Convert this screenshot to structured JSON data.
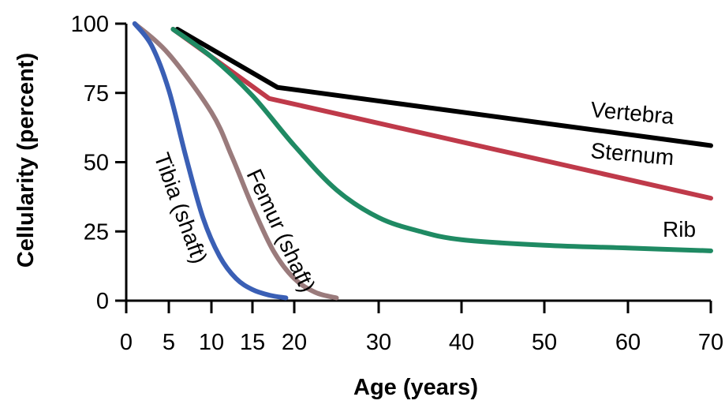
{
  "chart_data": {
    "type": "line",
    "title": "",
    "xlabel": "Age (years)",
    "ylabel": "Cellularity (percent)",
    "xlim": [
      0,
      70
    ],
    "ylim": [
      0,
      100
    ],
    "x_ticks": [
      0,
      5,
      10,
      15,
      20,
      30,
      40,
      50,
      60,
      70
    ],
    "y_ticks": [
      0,
      25,
      50,
      75,
      100
    ],
    "grid": false,
    "legend": "inline labels",
    "series": [
      {
        "name": "Vertebra",
        "color": "#000000",
        "x": [
          6,
          18,
          70
        ],
        "y": [
          98,
          77,
          56
        ]
      },
      {
        "name": "Sternum",
        "color": "#bf3a4a",
        "x": [
          5.5,
          17,
          70
        ],
        "y": [
          98,
          73,
          37
        ]
      },
      {
        "name": "Rib",
        "color": "#1f8a63",
        "x": [
          5.5,
          10,
          15,
          20,
          25,
          30,
          35,
          40,
          50,
          60,
          70
        ],
        "y": [
          98,
          88,
          74,
          56,
          40,
          30,
          25,
          22,
          20,
          19,
          18
        ]
      },
      {
        "name": "Femur (shaft)",
        "color": "#9a7b7c",
        "x": [
          1,
          5,
          10,
          12.5,
          15,
          17.5,
          20,
          22.5,
          25
        ],
        "y": [
          100,
          89,
          68,
          52,
          34,
          18,
          8,
          3,
          1
        ]
      },
      {
        "name": "Tibia (shaft)",
        "color": "#3a5fb5",
        "x": [
          1,
          3,
          5,
          7,
          9,
          11,
          13,
          15,
          17,
          19
        ],
        "y": [
          100,
          92,
          76,
          52,
          30,
          16,
          8,
          4,
          2,
          1
        ]
      }
    ]
  }
}
